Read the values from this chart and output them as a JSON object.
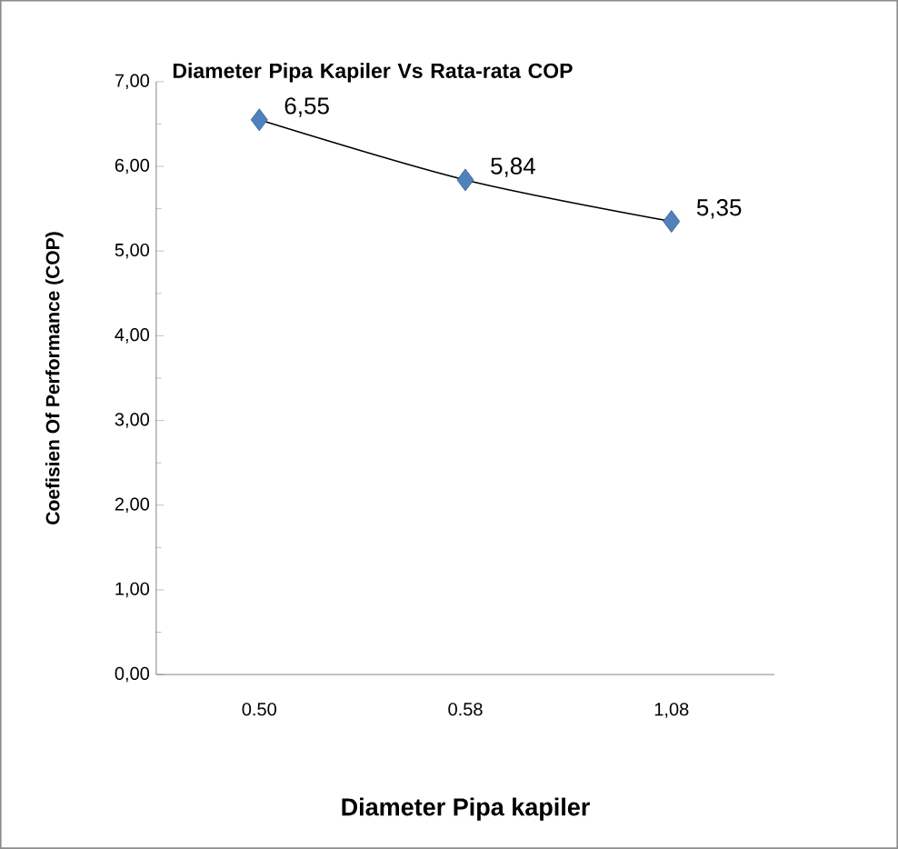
{
  "chart_data": {
    "type": "scatter",
    "title": "Diameter Pipa Kapiler Vs Rata-rata COP",
    "xlabel": "Diameter Pipa kapiler",
    "ylabel": "Coefisien Of Performance (COP)",
    "categories": [
      "0.50",
      "0.58",
      "1,08"
    ],
    "series": [
      {
        "color": "#4f81bd",
        "marker": "diamond",
        "values": [
          6.55,
          5.84,
          5.35
        ],
        "value_labels": [
          "6,55",
          "5,84",
          "5,35"
        ]
      },
      {
        "type": "line",
        "color": "#000000",
        "marker": "none",
        "values": [
          6.55,
          5.84,
          5.35
        ]
      }
    ],
    "ylim": [
      0,
      7
    ],
    "yticks": [
      {
        "value": 0,
        "label": "0,00"
      },
      {
        "value": 1,
        "label": "1,00"
      },
      {
        "value": 2,
        "label": "2,00"
      },
      {
        "value": 3,
        "label": "3,00"
      },
      {
        "value": 4,
        "label": "4,00"
      },
      {
        "value": 5,
        "label": "5,00"
      },
      {
        "value": 6,
        "label": "6,00"
      },
      {
        "value": 7,
        "label": "7,00"
      }
    ],
    "grid": false
  }
}
